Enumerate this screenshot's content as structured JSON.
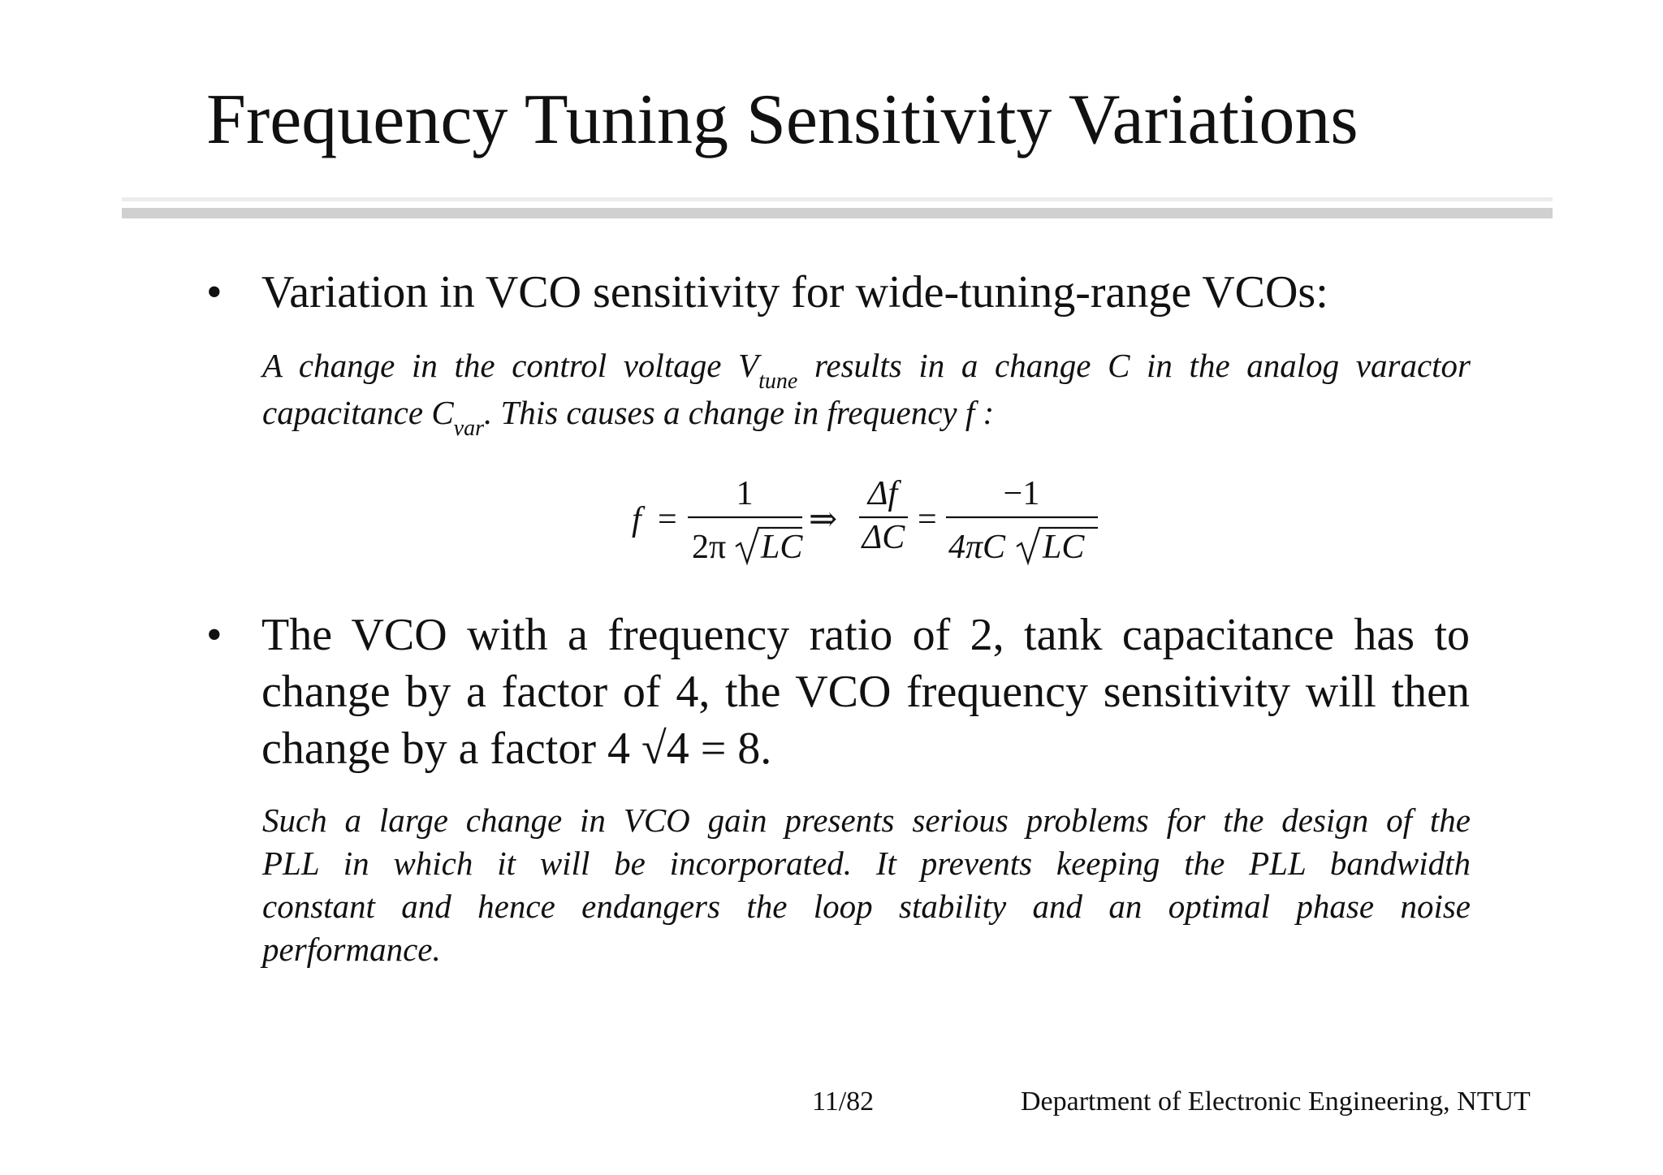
{
  "slide": {
    "title": "Frequency Tuning Sensitivity Variations",
    "bullet_symbol": "•",
    "bullets": [
      {
        "text": "Variation in VCO sensitivity for wide-tuning-range VCOs:"
      },
      {
        "text": "The VCO with a frequency ratio of 2, tank capacitance has to change by a factor of 4, the VCO frequency sensitivity will then change by a factor 4 √4 = 8."
      }
    ],
    "note1": {
      "seg1": "A change in the control voltage V",
      "sub1": "tune",
      "seg2": " results in a change C in the analog varactor",
      "seg3": "capacitance C",
      "sub2": "var",
      "seg4": ". This causes a change in frequency f :"
    },
    "equation": {
      "f": "f",
      "eq": "=",
      "num1": "1",
      "den1_pre": "2π",
      "sqrt_arg": "LC",
      "implies": "⇒",
      "num2": "Δf",
      "den2": "ΔC",
      "num3": "−1",
      "den3_pre": "4πC"
    },
    "note2": {
      "lines": [
        "Such a large change in VCO gain presents serious problems for the design of the",
        "PLL in which it will be incorporated. It prevents keeping the PLL bandwidth",
        "constant and hence endangers the loop stability and an optimal phase noise",
        "performance."
      ]
    },
    "footer": {
      "page": "11/82",
      "department": "Department of Electronic Engineering, NTUT"
    }
  }
}
